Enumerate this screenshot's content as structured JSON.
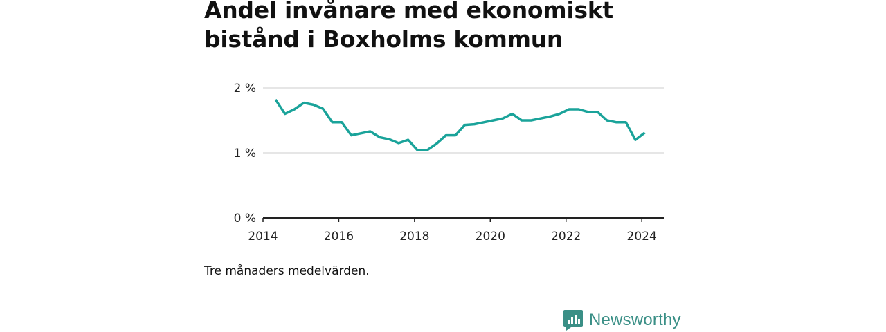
{
  "title": "Andel invånare med ekonomiskt bistånd i Boxholms kommun",
  "caption": "Tre månaders medelvärden.",
  "brand": {
    "name": "Newsworthy",
    "logo_icon": "bar-chart-speech-bubble-icon",
    "color": "#3a8f86"
  },
  "colors": {
    "line": "#1aa39a",
    "grid": "#dddddd",
    "axis": "#222222",
    "text": "#222222"
  },
  "chart_data": {
    "type": "line",
    "title": "Andel invånare med ekonomiskt bistånd i Boxholms kommun",
    "xlabel": "",
    "ylabel": "",
    "xlim": [
      2014,
      2024.6
    ],
    "ylim": [
      0,
      2
    ],
    "x_ticks": [
      2014,
      2016,
      2018,
      2020,
      2022,
      2024
    ],
    "y_ticks": [
      {
        "value": 0,
        "label": "0 %"
      },
      {
        "value": 1,
        "label": "1 %"
      },
      {
        "value": 2,
        "label": "2 %"
      }
    ],
    "grid": "horizontal",
    "legend": "none",
    "series": [
      {
        "x": [
          2014.33,
          2014.58,
          2014.83,
          2015.08,
          2015.33,
          2015.58,
          2015.83,
          2016.08,
          2016.33,
          2016.58,
          2016.83,
          2017.08,
          2017.33,
          2017.58,
          2017.83,
          2018.08,
          2018.33,
          2018.58,
          2018.83,
          2019.08,
          2019.33,
          2019.58,
          2019.83,
          2020.08,
          2020.33,
          2020.58,
          2020.83,
          2021.08,
          2021.33,
          2021.58,
          2021.83,
          2022.08,
          2022.33,
          2022.58,
          2022.83,
          2023.08,
          2023.33,
          2023.58,
          2023.83,
          2024.08
        ],
        "values": [
          1.82,
          1.6,
          1.67,
          1.77,
          1.74,
          1.68,
          1.47,
          1.47,
          1.27,
          1.3,
          1.33,
          1.24,
          1.21,
          1.15,
          1.2,
          1.04,
          1.04,
          1.14,
          1.27,
          1.27,
          1.43,
          1.44,
          1.47,
          1.5,
          1.53,
          1.6,
          1.5,
          1.5,
          1.53,
          1.56,
          1.6,
          1.67,
          1.67,
          1.63,
          1.63,
          1.5,
          1.47,
          1.47,
          1.2,
          1.31
        ]
      }
    ]
  }
}
